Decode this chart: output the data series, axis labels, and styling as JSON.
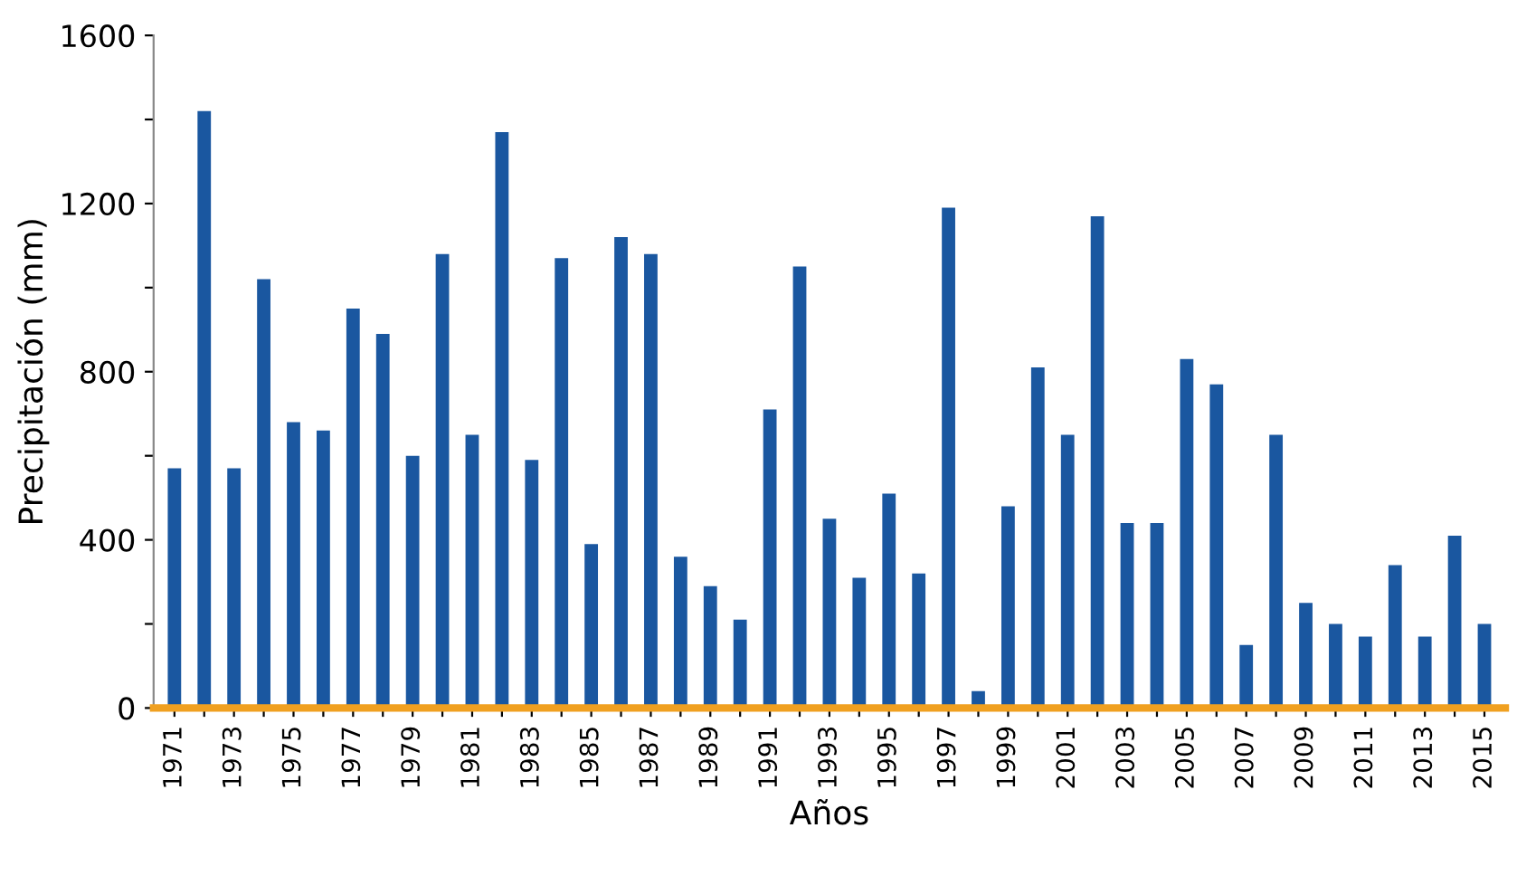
{
  "chart_data": {
    "type": "bar",
    "xlabel": "Años",
    "ylabel": "Precipitación (mm)",
    "categories": [
      "1971",
      null,
      "1973",
      null,
      "1975",
      null,
      "1977",
      null,
      "1979",
      null,
      "1981",
      null,
      "1983",
      null,
      "1985",
      null,
      "1987",
      null,
      "1989",
      null,
      "1991",
      null,
      "1993",
      null,
      "1995",
      null,
      "1997",
      null,
      "1999",
      null,
      "2001",
      null,
      "2003",
      null,
      "2005",
      null,
      "2007",
      null,
      "2009",
      null,
      "2011",
      null,
      "2013",
      null,
      "2015"
    ],
    "values": [
      570,
      1420,
      570,
      1020,
      680,
      660,
      950,
      890,
      600,
      1080,
      650,
      1370,
      590,
      1070,
      390,
      1120,
      1080,
      360,
      290,
      210,
      710,
      1050,
      450,
      310,
      510,
      320,
      1190,
      40,
      480,
      810,
      650,
      1170,
      440,
      440,
      830,
      770,
      150,
      650,
      250,
      200,
      170,
      340,
      170,
      410,
      200
    ],
    "color": "#1a57a0",
    "ylim": [
      0,
      1600
    ],
    "yticks": [
      0,
      {
        "value": 200,
        "label": null
      },
      400,
      {
        "value": 600,
        "label": null
      },
      800,
      {
        "value": 1000,
        "label": null
      },
      1200,
      {
        "value": 1400,
        "label": null
      },
      1600
    ],
    "grid": false
  }
}
